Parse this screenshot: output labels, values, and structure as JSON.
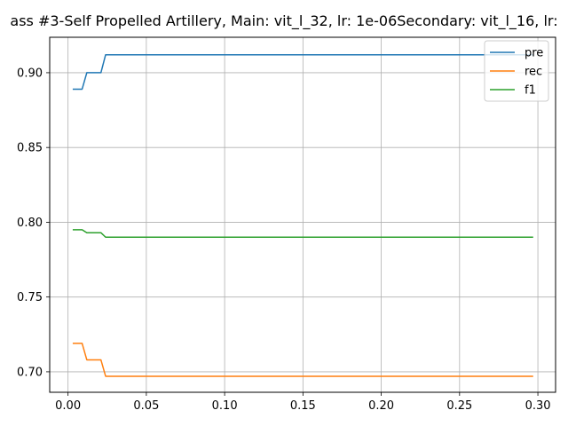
{
  "chart_data": {
    "type": "line",
    "title": "ass #3-Self Propelled Artillery, Main: vit_l_32, lr: 1e-06Secondary: vit_l_16, lr:",
    "xlabel": "",
    "ylabel": "",
    "xlim": [
      -0.0117,
      0.3113
    ],
    "ylim": [
      0.6863,
      0.9237
    ],
    "xticks": [
      0.0,
      0.05,
      0.1,
      0.15,
      0.2,
      0.25,
      0.3
    ],
    "xtick_labels": [
      "0.00",
      "0.05",
      "0.10",
      "0.15",
      "0.20",
      "0.25",
      "0.30"
    ],
    "yticks": [
      0.7,
      0.75,
      0.8,
      0.85,
      0.9
    ],
    "ytick_labels": [
      "0.70",
      "0.75",
      "0.80",
      "0.85",
      "0.90"
    ],
    "grid": true,
    "legend_position": "top-right",
    "series": [
      {
        "name": "pre",
        "color": "#1f77b4",
        "x": [
          0.003,
          0.009,
          0.012,
          0.021,
          0.024,
          0.297
        ],
        "y": [
          0.889,
          0.889,
          0.9,
          0.9,
          0.912,
          0.912
        ]
      },
      {
        "name": "rec",
        "color": "#ff7f0e",
        "x": [
          0.003,
          0.009,
          0.012,
          0.021,
          0.024,
          0.297
        ],
        "y": [
          0.719,
          0.719,
          0.708,
          0.708,
          0.697,
          0.697
        ]
      },
      {
        "name": "f1",
        "color": "#2ca02c",
        "x": [
          0.003,
          0.009,
          0.012,
          0.021,
          0.024,
          0.297
        ],
        "y": [
          0.795,
          0.795,
          0.793,
          0.793,
          0.79,
          0.79
        ]
      }
    ]
  }
}
